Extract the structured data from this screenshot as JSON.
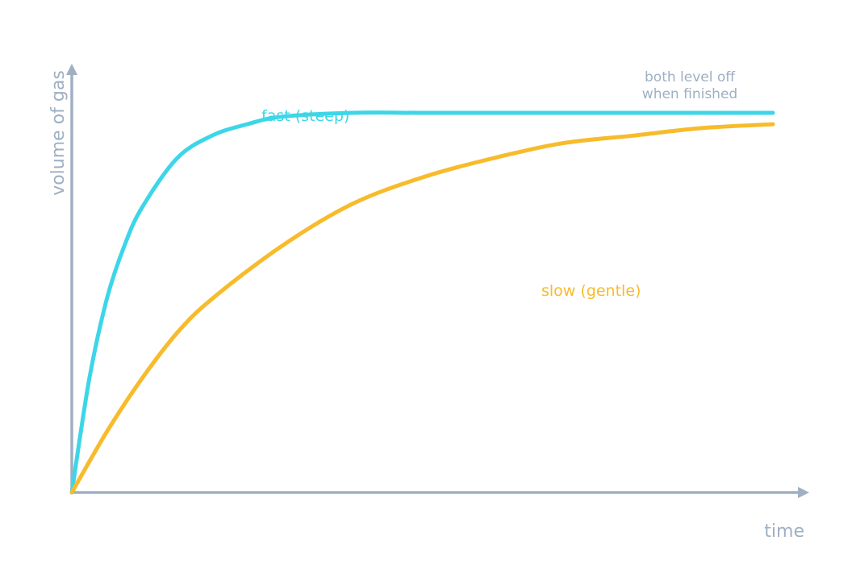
{
  "chart_data": {
    "type": "line",
    "xlabel": "time",
    "ylabel": "volume of gas",
    "xlim": [
      0,
      10
    ],
    "ylim": [
      0,
      1.05
    ],
    "grid": false,
    "legend": "none",
    "series": [
      {
        "name": "fast (steep)",
        "color": "#3dd6e8",
        "x": [
          0,
          0.25,
          0.5,
          0.75,
          1,
          1.5,
          2,
          2.5,
          3,
          4,
          5,
          6,
          7,
          8,
          9,
          10
        ],
        "y": [
          0,
          0.3,
          0.51,
          0.65,
          0.75,
          0.88,
          0.94,
          0.97,
          0.99,
          1.0,
          1.0,
          1.0,
          1.0,
          1.0,
          1.0,
          1.0
        ]
      },
      {
        "name": "slow (gentle)",
        "color": "#f7bb2b",
        "x": [
          0,
          0.5,
          1,
          1.5,
          2,
          3,
          4,
          5,
          6,
          7,
          8,
          9,
          10
        ],
        "y": [
          0,
          0.16,
          0.3,
          0.42,
          0.51,
          0.65,
          0.76,
          0.83,
          0.88,
          0.92,
          0.94,
          0.96,
          0.97
        ]
      }
    ],
    "annotations": [
      {
        "text_lines": [
          "both level off",
          "when finished"
        ],
        "color": "#9fb0c3"
      }
    ],
    "axis_color": "#9fb0c3"
  }
}
